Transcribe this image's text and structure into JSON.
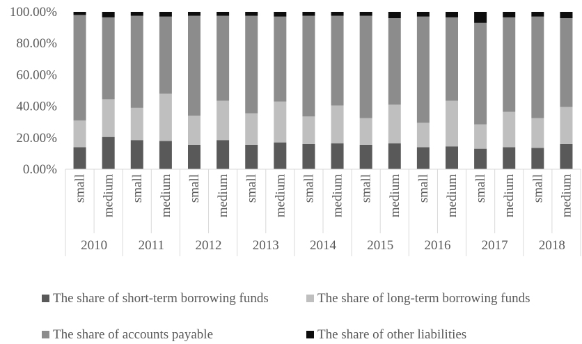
{
  "chart_data": {
    "type": "bar",
    "stacked": true,
    "normalized": true,
    "y_axis": {
      "ticks": [
        "0.00%",
        "20.00%",
        "40.00%",
        "60.00%",
        "80.00%",
        "100.00%"
      ],
      "min": 0,
      "max": 100
    },
    "grid": false,
    "legend_position": "bottom",
    "groups": [
      "2010",
      "2011",
      "2012",
      "2013",
      "2014",
      "2015",
      "2016",
      "2017",
      "2018"
    ],
    "subcategories": [
      "small",
      "medium"
    ],
    "series": [
      {
        "name": "The share of short-term borrowing funds",
        "color": "#595959",
        "values": [
          14,
          20.5,
          18.5,
          18,
          15.5,
          18.5,
          15.5,
          17,
          16,
          16.5,
          15.5,
          16.5,
          14,
          14.5,
          13,
          14,
          13.5,
          16
        ]
      },
      {
        "name": "The share of long-term borrowing funds",
        "color": "#bfbfbf",
        "values": [
          17,
          24,
          20.5,
          30,
          18.5,
          25,
          20,
          26,
          17.5,
          24,
          17,
          24.5,
          15.5,
          29,
          15.5,
          22.5,
          19,
          23.5
        ]
      },
      {
        "name": "The share of accounts payable",
        "color": "#8c8c8c",
        "values": [
          67,
          52,
          58.5,
          49,
          63.5,
          54,
          62,
          54,
          64,
          57,
          65,
          55,
          67.5,
          53,
          64.5,
          60,
          64.5,
          56.5
        ]
      },
      {
        "name": "The share of other liabilities",
        "color": "#0d0d0d",
        "values": [
          2,
          3.5,
          2.5,
          3,
          2.5,
          2.5,
          2.5,
          3,
          2.5,
          2.5,
          2.5,
          4,
          3,
          3.5,
          7,
          3.5,
          3,
          4
        ]
      }
    ]
  }
}
